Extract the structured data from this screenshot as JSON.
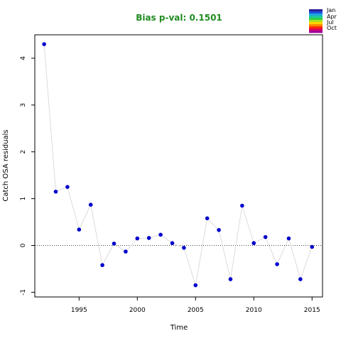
{
  "chart_data": {
    "type": "line",
    "title": "Bias p-val: 0.1501",
    "xlabel": "Time",
    "ylabel": "Catch OSA residuals",
    "xlim": [
      1991.2,
      2015.9
    ],
    "ylim": [
      -1.1,
      4.5
    ],
    "x_ticks": [
      1995,
      2000,
      2005,
      2010,
      2015
    ],
    "y_ticks": [
      -1,
      0,
      1,
      2,
      3,
      4
    ],
    "reference_line": 0,
    "grid": false,
    "series": [
      {
        "x": [
          1992,
          1993,
          1994,
          1995,
          1996,
          1997,
          1998,
          1999,
          2000,
          2001,
          2002,
          2003,
          2004,
          2005,
          2006,
          2007,
          2008,
          2009,
          2010,
          2011,
          2012,
          2013,
          2014,
          2015
        ],
        "y": [
          4.3,
          1.15,
          1.25,
          0.34,
          0.87,
          -0.42,
          0.04,
          -0.13,
          0.15,
          0.16,
          0.23,
          0.05,
          -0.05,
          -0.85,
          0.58,
          0.33,
          -0.72,
          0.85,
          0.05,
          0.18,
          -0.4,
          0.15,
          -0.72,
          -0.03
        ]
      }
    ],
    "colors": {
      "title": "#228b22",
      "points": "#0000cd",
      "line": "#d3d3d3",
      "legend_gradient": [
        "#2c1f9e",
        "#1b52d8",
        "#1fa7e0",
        "#18c9a0",
        "#2fd24b",
        "#a9e020",
        "#ffd400",
        "#ff8a00",
        "#ff2d00",
        "#e0005a",
        "#a0009a"
      ]
    },
    "legend": {
      "placement": "top-right",
      "labels": [
        "Jan",
        "Apr",
        "Jul",
        "Oct"
      ]
    }
  }
}
